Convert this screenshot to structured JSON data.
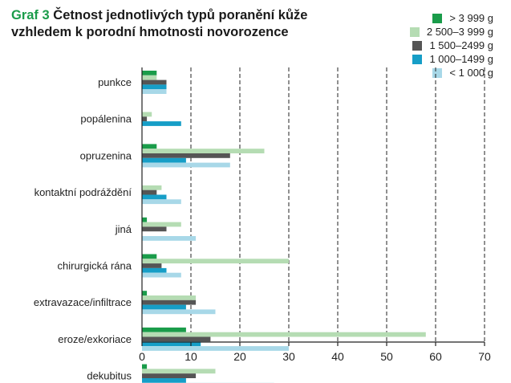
{
  "header": {
    "label": "Graf 3",
    "title": "Četnost jednotlivých typů poranění kůže vzhledem k porodní hmotnosti novorozence"
  },
  "chart_data": {
    "type": "bar",
    "orientation": "horizontal",
    "title": "Četnost jednotlivých typů poranění kůže vzhledem k porodní hmotnosti novorozence",
    "xlabel": "",
    "ylabel": "",
    "xlim": [
      0,
      70
    ],
    "xticks": [
      0,
      10,
      20,
      30,
      40,
      50,
      60,
      70
    ],
    "grid": "vertical dashed",
    "legend_position": "top-right",
    "categories": [
      "punkce",
      "popálenina",
      "opruzenina",
      "kontaktní podráždění",
      "jiná",
      "chirurgická rána",
      "extravazace/infiltrace",
      "eroze/exkoriace",
      "dekubitus"
    ],
    "series": [
      {
        "name": "> 3 999 g",
        "color": "#1a9c4a",
        "values": [
          3,
          0,
          3,
          0,
          1,
          3,
          1,
          9,
          1
        ]
      },
      {
        "name": "2 500–3 999 g",
        "color": "#b5dcb3",
        "values": [
          3,
          2,
          25,
          4,
          8,
          30,
          11,
          58,
          15
        ]
      },
      {
        "name": "1 500–2499 g",
        "color": "#555555",
        "values": [
          5,
          1,
          18,
          3,
          5,
          4,
          11,
          14,
          11
        ]
      },
      {
        "name": "1 000–1499 g",
        "color": "#169ec7",
        "values": [
          5,
          8,
          9,
          5,
          0,
          5,
          9,
          12,
          9
        ]
      },
      {
        "name": "< 1 000 g",
        "color": "#a8d8e8",
        "values": [
          5,
          0,
          18,
          8,
          11,
          8,
          15,
          30,
          27
        ]
      }
    ]
  }
}
